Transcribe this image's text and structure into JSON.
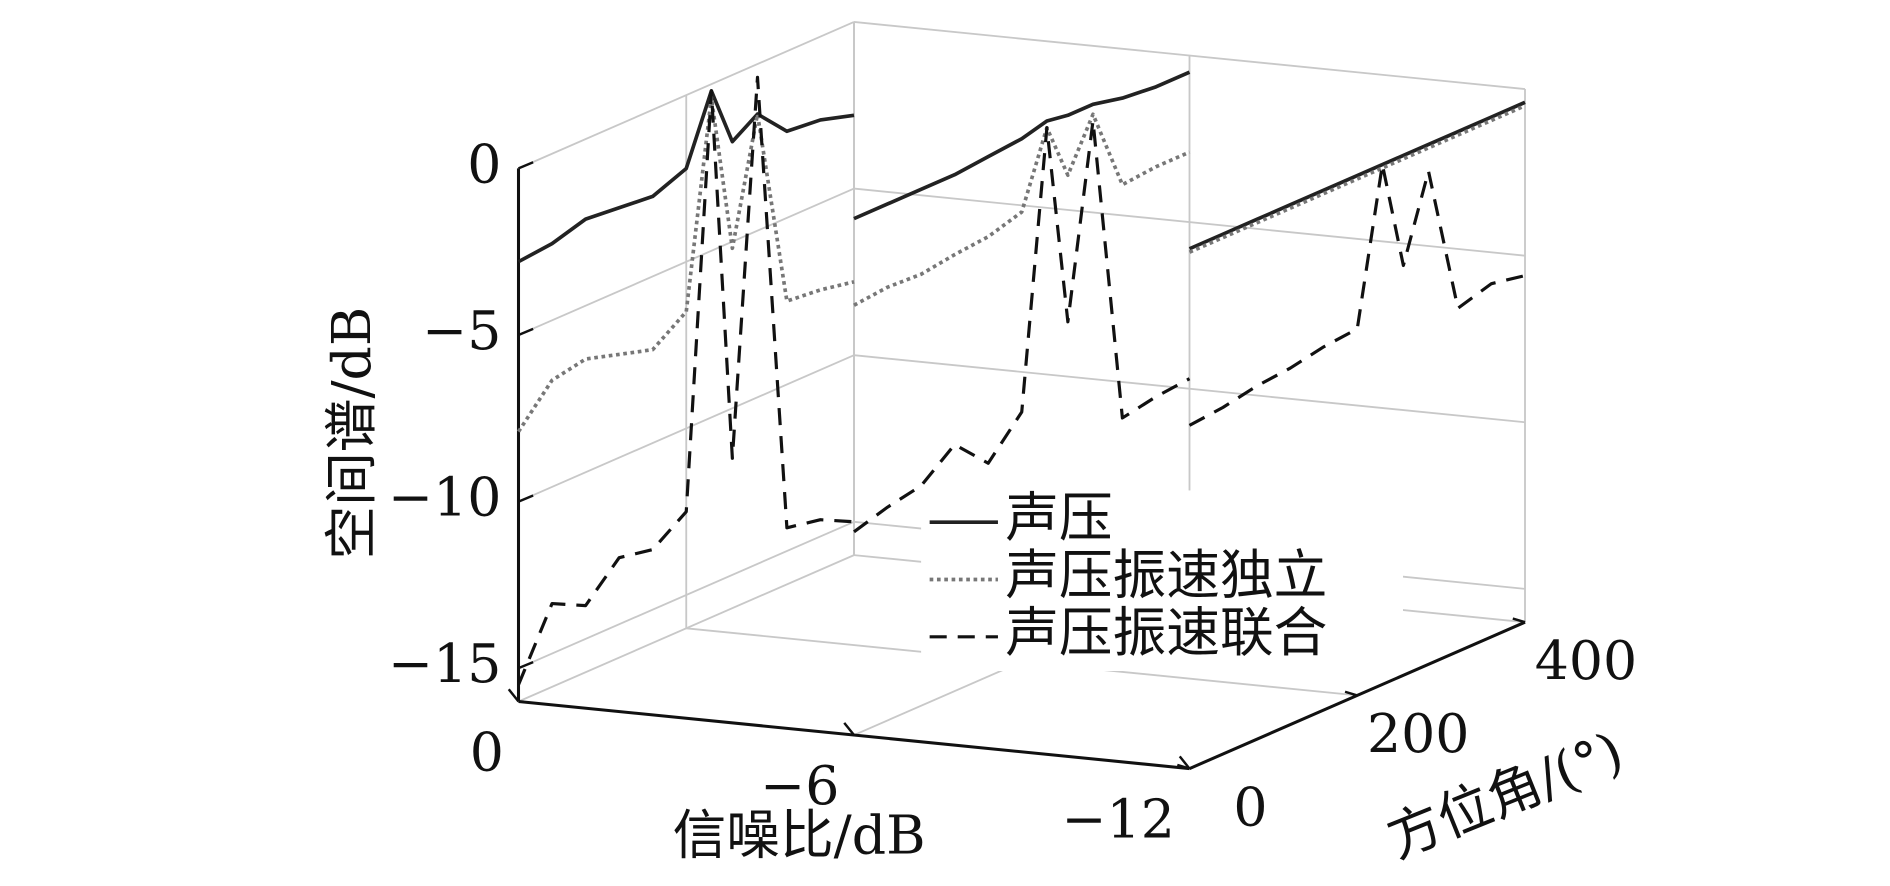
{
  "chart_data": {
    "type": "waterfall3d",
    "xlabel": "信噪比/dB",
    "ylabel": "方位角/(°)",
    "zlabel": "空间谱/dB",
    "slices": [
      0,
      -6,
      -12
    ],
    "y": [
      0,
      40,
      80,
      120,
      160,
      200,
      230,
      255,
      285,
      320,
      360,
      400
    ],
    "xlim": [
      0,
      -12
    ],
    "xticks": [
      0,
      {
        "value": -6,
        "label": "−6"
      },
      {
        "value": -12,
        "label": "−12"
      }
    ],
    "ylim": [
      0,
      400
    ],
    "yticks": [
      0,
      200,
      400
    ],
    "zlim": [
      -16,
      0
    ],
    "zticks": [
      {
        "value": -15,
        "label": "−15"
      },
      {
        "value": -10,
        "label": "−10"
      },
      {
        "value": -5,
        "label": "−5"
      },
      0
    ],
    "grid": true,
    "series": [
      {
        "name": "声压",
        "color": "#222222",
        "style": "solid",
        "values": [
          [
            -2.8,
            -2.7,
            -2.4,
            -2.5,
            -2.6,
            -2.2,
            -0.2,
            -2.0,
            -1.5,
            -2.4,
            -2.5,
            -2.8
          ],
          [
            -0.5,
            -0.5,
            -0.5,
            -0.5,
            -0.4,
            -0.3,
            -0.1,
            -0.2,
            -0.2,
            -0.4,
            -0.5,
            -0.5
          ],
          [
            -0.4,
            -0.4,
            -0.4,
            -0.4,
            -0.4,
            -0.4,
            -0.4,
            -0.4,
            -0.4,
            -0.4,
            -0.4,
            -0.4
          ]
        ]
      },
      {
        "name": "声压振速独立",
        "color": "#777777",
        "style": "dotted",
        "values": [
          [
            -7.9,
            -6.8,
            -6.6,
            -6.9,
            -7.2,
            -6.5,
            -0.4,
            -5.2,
            -1.5,
            -7.5,
            -7.6,
            -7.8
          ],
          [
            -3.1,
            -3.0,
            -3.05,
            -2.9,
            -2.8,
            -2.5,
            -0.3,
            -2.0,
            -0.5,
            -3.0,
            -2.9,
            -2.9
          ],
          [
            -0.5,
            -0.5,
            -0.5,
            -0.5,
            -0.5,
            -0.5,
            -0.5,
            -0.5,
            -0.5,
            -0.5,
            -0.5,
            -0.5
          ]
        ]
      },
      {
        "name": "声压振速联合",
        "color": "#111111",
        "style": "dashed",
        "values": [
          [
            -15.5,
            -13.5,
            -14.0,
            -13.0,
            -13.2,
            -12.5,
            -0.2,
            -11.5,
            -0.4,
            -14.3,
            -14.5,
            -15.0
          ],
          [
            -9.9,
            -9.6,
            -9.4,
            -8.6,
            -9.6,
            -8.5,
            -0.3,
            -6.4,
            -0.7,
            -10.0,
            -9.8,
            -9.7
          ],
          [
            -5.7,
            -5.6,
            -5.4,
            -5.3,
            -5.1,
            -5.0,
            -0.4,
            -3.7,
            -1.2,
            -5.7,
            -5.4,
            -5.6
          ]
        ]
      }
    ]
  }
}
